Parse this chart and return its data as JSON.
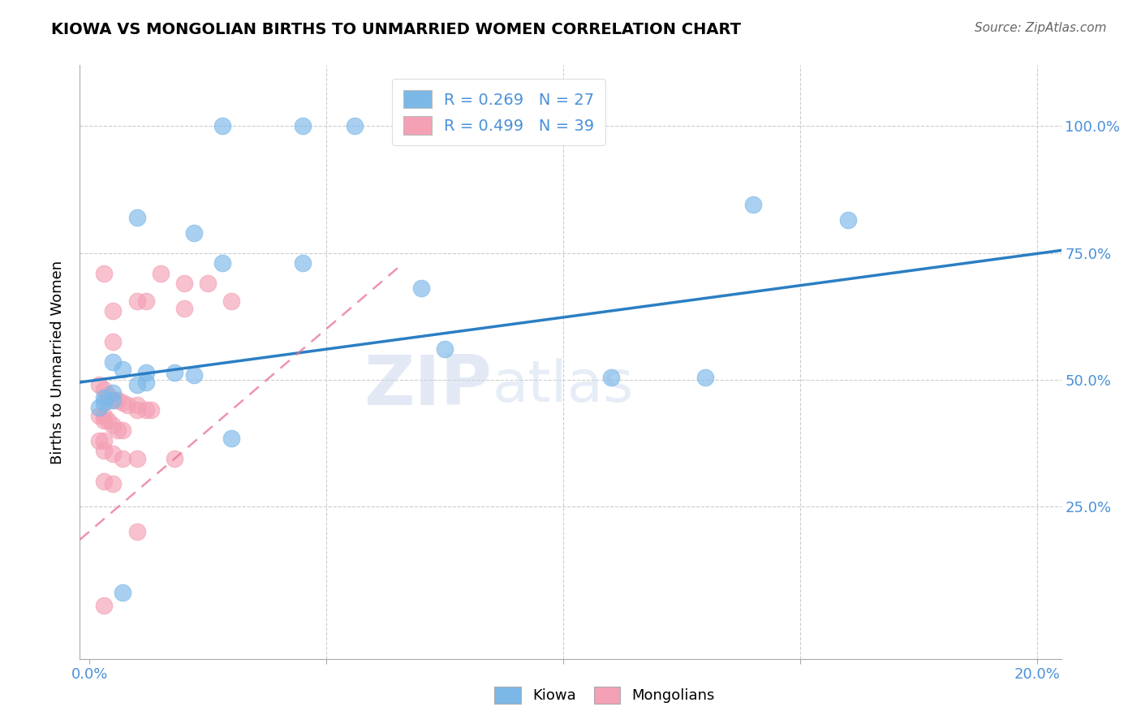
{
  "title": "KIOWA VS MONGOLIAN BIRTHS TO UNMARRIED WOMEN CORRELATION CHART",
  "source": "Source: ZipAtlas.com",
  "ylabel_label": "Births to Unmarried Women",
  "x_min": -0.002,
  "x_max": 0.205,
  "y_min": -0.05,
  "y_max": 1.12,
  "kiowa_color": "#7BB8E8",
  "mongolian_color": "#F4A0B5",
  "kiowa_R": 0.269,
  "kiowa_N": 27,
  "mongolian_R": 0.499,
  "mongolian_N": 39,
  "text_color": "#4A90D9",
  "kiowa_line_color": "#2B7EC3",
  "mongolian_line_color": "#E87090",
  "kiowa_line_x0": -0.002,
  "kiowa_line_y0": 0.495,
  "kiowa_line_x1": 0.205,
  "kiowa_line_y1": 0.755,
  "mongolian_line_x0": -0.002,
  "mongolian_line_y0": 0.185,
  "mongolian_line_x1": 0.065,
  "mongolian_line_y1": 0.72,
  "watermark_zip": "ZIP",
  "watermark_atlas": "atlas",
  "kiowa_points": [
    [
      0.028,
      1.0
    ],
    [
      0.045,
      1.0
    ],
    [
      0.056,
      1.0
    ],
    [
      0.01,
      0.82
    ],
    [
      0.022,
      0.79
    ],
    [
      0.028,
      0.73
    ],
    [
      0.045,
      0.73
    ],
    [
      0.07,
      0.68
    ],
    [
      0.075,
      0.56
    ],
    [
      0.005,
      0.535
    ],
    [
      0.007,
      0.52
    ],
    [
      0.012,
      0.515
    ],
    [
      0.018,
      0.515
    ],
    [
      0.022,
      0.51
    ],
    [
      0.012,
      0.495
    ],
    [
      0.01,
      0.49
    ],
    [
      0.005,
      0.475
    ],
    [
      0.003,
      0.465
    ],
    [
      0.005,
      0.46
    ],
    [
      0.003,
      0.455
    ],
    [
      0.002,
      0.445
    ],
    [
      0.11,
      0.505
    ],
    [
      0.13,
      0.505
    ],
    [
      0.14,
      0.845
    ],
    [
      0.16,
      0.815
    ],
    [
      0.03,
      0.385
    ],
    [
      0.007,
      0.08
    ]
  ],
  "mongolian_points": [
    [
      0.003,
      0.71
    ],
    [
      0.005,
      0.635
    ],
    [
      0.005,
      0.575
    ],
    [
      0.01,
      0.655
    ],
    [
      0.012,
      0.655
    ],
    [
      0.015,
      0.71
    ],
    [
      0.02,
      0.69
    ],
    [
      0.02,
      0.64
    ],
    [
      0.025,
      0.69
    ],
    [
      0.03,
      0.655
    ],
    [
      0.002,
      0.49
    ],
    [
      0.003,
      0.48
    ],
    [
      0.004,
      0.47
    ],
    [
      0.005,
      0.46
    ],
    [
      0.006,
      0.46
    ],
    [
      0.007,
      0.455
    ],
    [
      0.008,
      0.45
    ],
    [
      0.01,
      0.45
    ],
    [
      0.01,
      0.44
    ],
    [
      0.012,
      0.44
    ],
    [
      0.013,
      0.44
    ],
    [
      0.002,
      0.43
    ],
    [
      0.003,
      0.43
    ],
    [
      0.003,
      0.42
    ],
    [
      0.004,
      0.42
    ],
    [
      0.005,
      0.41
    ],
    [
      0.006,
      0.4
    ],
    [
      0.007,
      0.4
    ],
    [
      0.002,
      0.38
    ],
    [
      0.003,
      0.38
    ],
    [
      0.003,
      0.36
    ],
    [
      0.005,
      0.355
    ],
    [
      0.007,
      0.345
    ],
    [
      0.01,
      0.345
    ],
    [
      0.018,
      0.345
    ],
    [
      0.003,
      0.3
    ],
    [
      0.005,
      0.295
    ],
    [
      0.01,
      0.2
    ],
    [
      0.003,
      0.055
    ]
  ]
}
